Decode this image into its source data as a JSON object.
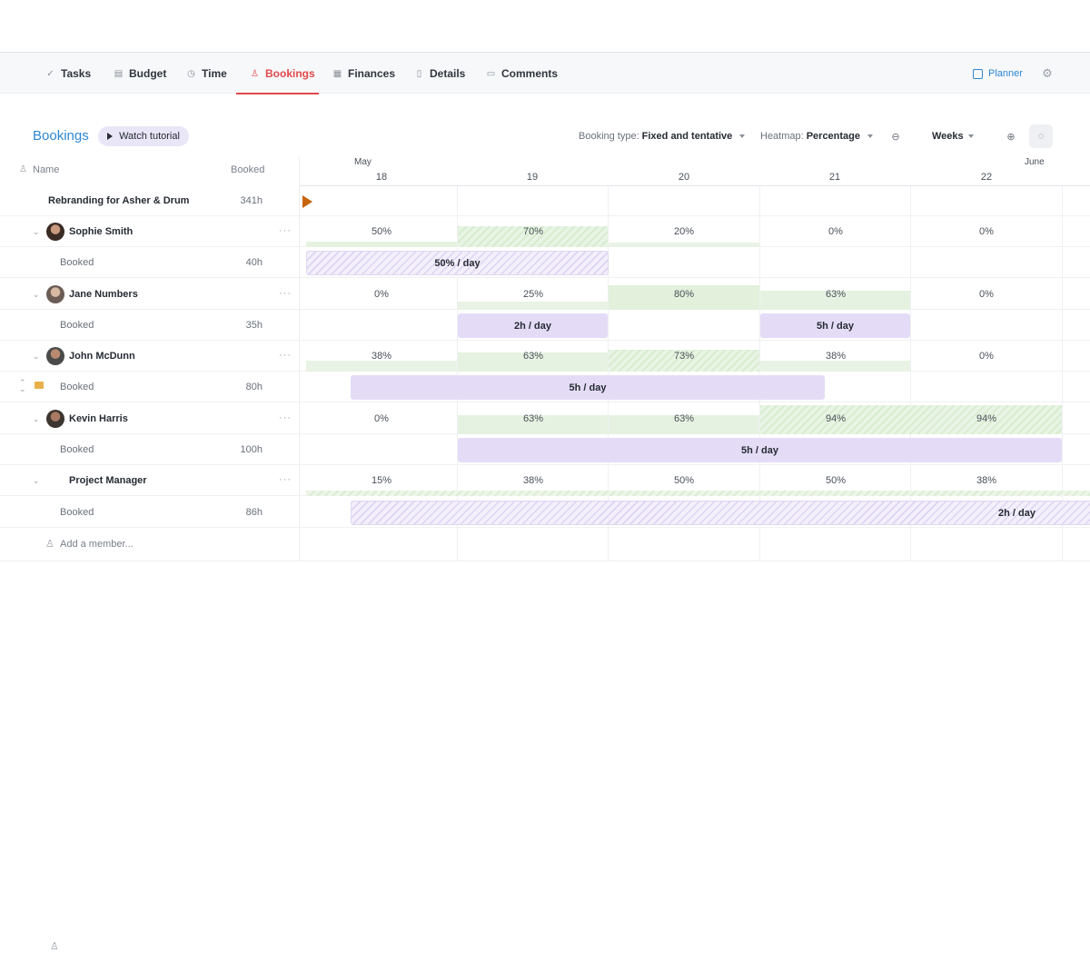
{
  "tabs": [
    {
      "label": "Tasks",
      "icon": "tasks-icon"
    },
    {
      "label": "Budget",
      "icon": "budget-icon"
    },
    {
      "label": "Time",
      "icon": "clock-icon"
    },
    {
      "label": "Bookings",
      "icon": "person-icon"
    },
    {
      "label": "Finances",
      "icon": "finances-icon"
    },
    {
      "label": "Details",
      "icon": "document-icon"
    },
    {
      "label": "Comments",
      "icon": "comment-icon"
    }
  ],
  "active_tab": "Bookings",
  "planner_label": "Planner",
  "page_title": "Bookings",
  "tutorial_label": "Watch tutorial",
  "controls": {
    "booking_type_label": "Booking type:",
    "booking_type_value": "Fixed and tentative",
    "heatmap_label": "Heatmap:",
    "heatmap_value": "Percentage",
    "view_value": "Weeks"
  },
  "columns": {
    "name": "Name",
    "booked": "Booked"
  },
  "timeline": {
    "months": [
      "May",
      "June"
    ],
    "weeks": [
      "18",
      "19",
      "20",
      "21",
      "22"
    ]
  },
  "project": {
    "name": "Rebranding for Asher & Drum",
    "hours": "341h"
  },
  "members": [
    {
      "name": "Sophie Smith",
      "booked_label": "Booked",
      "hours": "40h",
      "heatmap": [
        "50%",
        "70%",
        "20%",
        "0%",
        "0%"
      ],
      "bookings": [
        "50% / day"
      ]
    },
    {
      "name": "Jane Numbers",
      "booked_label": "Booked",
      "hours": "35h",
      "heatmap": [
        "0%",
        "25%",
        "80%",
        "63%",
        "0%"
      ],
      "bookings": [
        "2h / day",
        "5h / day"
      ]
    },
    {
      "name": "John McDunn",
      "booked_label": "Booked",
      "hours": "80h",
      "heatmap": [
        "38%",
        "63%",
        "73%",
        "38%",
        "0%"
      ],
      "bookings": [
        "5h / day"
      ]
    },
    {
      "name": "Kevin Harris",
      "booked_label": "Booked",
      "hours": "100h",
      "heatmap": [
        "0%",
        "63%",
        "63%",
        "94%",
        "94%"
      ],
      "bookings": [
        "5h / day"
      ]
    },
    {
      "name": "Project Manager",
      "booked_label": "Booked",
      "hours": "86h",
      "heatmap": [
        "15%",
        "38%",
        "50%",
        "50%",
        "38%"
      ],
      "bookings": [
        "2h / day"
      ]
    }
  ],
  "add_member_label": "Add a member...",
  "colors": {
    "accent_blue": "#2d87d3",
    "active_tab_red": "#e0494b",
    "booking_purple": "#e4dcf7",
    "heat_green": "#e2f0dc",
    "project_marker": "#c8640f"
  }
}
